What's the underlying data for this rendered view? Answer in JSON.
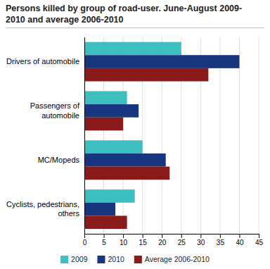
{
  "chart_data": {
    "type": "bar",
    "orientation": "horizontal",
    "title": "Persons killed by group of road-user. June-August 2009-\n2010 and average 2006-2010",
    "categories": [
      "Drivers of automobile",
      "Passengers of\nautomobile",
      "MC/Mopeds",
      "Cyclists, pedestrians,\nothers"
    ],
    "series": [
      {
        "name": "2009",
        "color": "#3dbfbf",
        "values": [
          25,
          11,
          15,
          13
        ]
      },
      {
        "name": "2010",
        "color": "#1a3580",
        "values": [
          40,
          14,
          21,
          8
        ]
      },
      {
        "name": "Average 2006-2010",
        "color": "#8b1a1a",
        "values": [
          32,
          10,
          22,
          11
        ]
      }
    ],
    "xlim": [
      0,
      45
    ],
    "xticks": [
      0,
      5,
      10,
      15,
      20,
      25,
      30,
      35,
      40,
      45
    ],
    "grid": true,
    "legend": "bottom"
  }
}
